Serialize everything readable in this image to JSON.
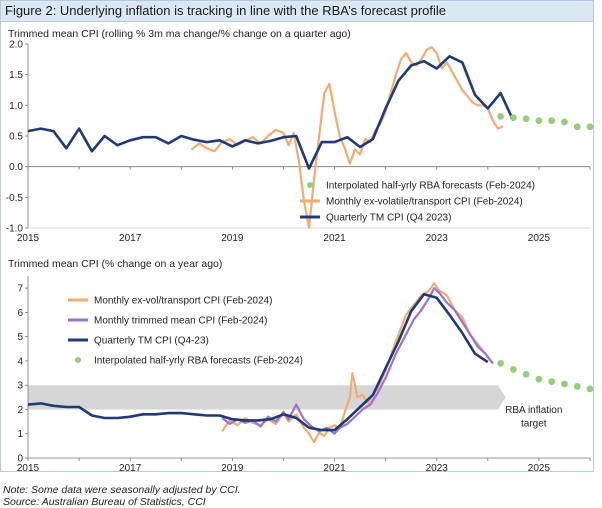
{
  "figure_title": "Figure 2: Underlying inflation is tracking in line with the RBA’s forecast profile",
  "note": "Note: Some data were seasonally adjusted by CCI.",
  "source": "Source: Australian Bureau of Statistics, CCI",
  "colors": {
    "quarterly": "#1f3a78",
    "monthly_exvol": "#f3ab74",
    "monthly_tm": "#9b72cf",
    "forecast": "#93cf79",
    "target_band": "#d6d6d6"
  },
  "chart_data": [
    {
      "type": "line",
      "title": "Trimmed mean CPI (rolling % 3m ma change/% change on a quarter ago)",
      "x_ticks": [
        "2015",
        "2017",
        "2019",
        "2021",
        "2023",
        "2025"
      ],
      "y_ticks": [
        "2.0",
        "1.5",
        "1.0",
        "0.5",
        "0.0",
        "-0.5",
        "-1.0"
      ],
      "xlim": [
        2015,
        2026
      ],
      "ylim": [
        -1.0,
        2.0
      ],
      "legend_position": "bottom-right",
      "series": [
        {
          "name": "Quarterly TM CPI (Q4 2023)",
          "style": "line",
          "color": "#1f3a78",
          "points": [
            [
              2015.0,
              0.58
            ],
            [
              2015.25,
              0.62
            ],
            [
              2015.5,
              0.58
            ],
            [
              2015.75,
              0.3
            ],
            [
              2016.0,
              0.62
            ],
            [
              2016.25,
              0.25
            ],
            [
              2016.5,
              0.5
            ],
            [
              2016.75,
              0.35
            ],
            [
              2017.0,
              0.43
            ],
            [
              2017.25,
              0.48
            ],
            [
              2017.5,
              0.48
            ],
            [
              2017.75,
              0.38
            ],
            [
              2018.0,
              0.5
            ],
            [
              2018.25,
              0.44
            ],
            [
              2018.5,
              0.4
            ],
            [
              2018.75,
              0.43
            ],
            [
              2019.0,
              0.33
            ],
            [
              2019.25,
              0.43
            ],
            [
              2019.5,
              0.38
            ],
            [
              2019.75,
              0.42
            ],
            [
              2020.0,
              0.48
            ],
            [
              2020.25,
              0.5
            ],
            [
              2020.5,
              -0.03
            ],
            [
              2020.75,
              0.4
            ],
            [
              2021.0,
              0.4
            ],
            [
              2021.25,
              0.48
            ],
            [
              2021.5,
              0.32
            ],
            [
              2021.75,
              0.45
            ],
            [
              2022.0,
              0.95
            ],
            [
              2022.25,
              1.4
            ],
            [
              2022.5,
              1.65
            ],
            [
              2022.75,
              1.72
            ],
            [
              2023.0,
              1.6
            ],
            [
              2023.25,
              1.8
            ],
            [
              2023.5,
              1.7
            ],
            [
              2023.75,
              1.17
            ],
            [
              2024.0,
              0.95
            ],
            [
              2024.25,
              1.2
            ],
            [
              2024.5,
              0.75
            ]
          ]
        },
        {
          "name": "Monthly ex-volatile/transport CPI (Feb-2024)",
          "style": "line",
          "color": "#f3ab74",
          "points": [
            [
              2018.2,
              0.28
            ],
            [
              2018.35,
              0.38
            ],
            [
              2018.5,
              0.3
            ],
            [
              2018.65,
              0.25
            ],
            [
              2018.8,
              0.4
            ],
            [
              2018.95,
              0.45
            ],
            [
              2019.1,
              0.35
            ],
            [
              2019.25,
              0.42
            ],
            [
              2019.4,
              0.48
            ],
            [
              2019.55,
              0.38
            ],
            [
              2019.7,
              0.5
            ],
            [
              2019.85,
              0.6
            ],
            [
              2020.0,
              0.55
            ],
            [
              2020.1,
              0.35
            ],
            [
              2020.2,
              0.55
            ],
            [
              2020.3,
              0.1
            ],
            [
              2020.4,
              -0.55
            ],
            [
              2020.5,
              -1.0
            ],
            [
              2020.6,
              -0.2
            ],
            [
              2020.7,
              0.5
            ],
            [
              2020.8,
              1.2
            ],
            [
              2020.9,
              1.35
            ],
            [
              2021.0,
              0.9
            ],
            [
              2021.1,
              0.5
            ],
            [
              2021.2,
              0.3
            ],
            [
              2021.3,
              0.05
            ],
            [
              2021.4,
              0.28
            ],
            [
              2021.5,
              0.2
            ],
            [
              2021.6,
              0.45
            ],
            [
              2021.7,
              0.4
            ],
            [
              2021.8,
              0.6
            ],
            [
              2021.9,
              0.7
            ],
            [
              2022.0,
              0.9
            ],
            [
              2022.1,
              1.2
            ],
            [
              2022.2,
              1.5
            ],
            [
              2022.3,
              1.75
            ],
            [
              2022.4,
              1.85
            ],
            [
              2022.5,
              1.7
            ],
            [
              2022.6,
              1.65
            ],
            [
              2022.7,
              1.75
            ],
            [
              2022.8,
              1.9
            ],
            [
              2022.9,
              1.95
            ],
            [
              2023.0,
              1.85
            ],
            [
              2023.1,
              1.6
            ],
            [
              2023.2,
              1.7
            ],
            [
              2023.3,
              1.55
            ],
            [
              2023.4,
              1.4
            ],
            [
              2023.5,
              1.25
            ],
            [
              2023.6,
              1.15
            ],
            [
              2023.7,
              1.05
            ],
            [
              2023.8,
              1.0
            ],
            [
              2023.9,
              1.0
            ],
            [
              2024.0,
              0.95
            ],
            [
              2024.1,
              0.75
            ],
            [
              2024.2,
              0.62
            ],
            [
              2024.3,
              0.66
            ]
          ]
        },
        {
          "name": "Interpolated half-yrly RBA forecasts (Feb-2024)",
          "style": "dots",
          "color": "#93cf79",
          "points": [
            [
              2024.25,
              0.82
            ],
            [
              2024.5,
              0.8
            ],
            [
              2024.75,
              0.78
            ],
            [
              2025.0,
              0.75
            ],
            [
              2025.25,
              0.75
            ],
            [
              2025.5,
              0.73
            ],
            [
              2025.75,
              0.65
            ],
            [
              2026.0,
              0.65
            ]
          ]
        }
      ]
    },
    {
      "type": "line",
      "title": "Trimmed mean CPI (% change on a year ago)",
      "x_ticks": [
        "2015",
        "2017",
        "2019",
        "2021",
        "2023",
        "2025"
      ],
      "y_ticks": [
        "7",
        "6",
        "5",
        "4",
        "3",
        "2",
        "1",
        "0"
      ],
      "xlim": [
        2015,
        2026
      ],
      "ylim": [
        0,
        7.5
      ],
      "legend_position": "top-left",
      "target_band": {
        "low": 2,
        "high": 3,
        "label": "RBA inflation target"
      },
      "series": [
        {
          "name": "Monthly ex-vol/transport CPI (Feb-2024)",
          "style": "line",
          "color": "#f3ab74",
          "points": [
            [
              2018.8,
              1.1
            ],
            [
              2018.95,
              1.55
            ],
            [
              2019.1,
              1.35
            ],
            [
              2019.25,
              1.65
            ],
            [
              2019.4,
              1.45
            ],
            [
              2019.55,
              1.35
            ],
            [
              2019.7,
              1.6
            ],
            [
              2019.85,
              1.4
            ],
            [
              2020.0,
              1.85
            ],
            [
              2020.1,
              1.5
            ],
            [
              2020.25,
              1.8
            ],
            [
              2020.4,
              1.25
            ],
            [
              2020.5,
              1.0
            ],
            [
              2020.6,
              0.65
            ],
            [
              2020.7,
              1.05
            ],
            [
              2020.8,
              0.9
            ],
            [
              2020.9,
              1.25
            ],
            [
              2021.0,
              1.35
            ],
            [
              2021.1,
              1.2
            ],
            [
              2021.2,
              1.9
            ],
            [
              2021.3,
              2.5
            ],
            [
              2021.35,
              3.5
            ],
            [
              2021.45,
              2.5
            ],
            [
              2021.55,
              2.6
            ],
            [
              2021.65,
              2.25
            ],
            [
              2021.75,
              2.6
            ],
            [
              2021.85,
              2.9
            ],
            [
              2022.0,
              3.6
            ],
            [
              2022.2,
              4.8
            ],
            [
              2022.4,
              5.9
            ],
            [
              2022.55,
              6.3
            ],
            [
              2022.7,
              6.7
            ],
            [
              2022.85,
              6.9
            ],
            [
              2022.95,
              7.2
            ],
            [
              2023.05,
              6.9
            ],
            [
              2023.2,
              6.7
            ],
            [
              2023.35,
              6.1
            ],
            [
              2023.5,
              5.8
            ],
            [
              2023.65,
              5.1
            ],
            [
              2023.8,
              4.7
            ],
            [
              2023.95,
              4.3
            ],
            [
              2024.1,
              3.9
            ]
          ]
        },
        {
          "name": "Monthly trimmed mean CPI (Feb-2024)",
          "style": "line",
          "color": "#9b72cf",
          "points": [
            [
              2018.8,
              1.65
            ],
            [
              2018.95,
              1.4
            ],
            [
              2019.1,
              1.6
            ],
            [
              2019.25,
              1.45
            ],
            [
              2019.4,
              1.55
            ],
            [
              2019.55,
              1.3
            ],
            [
              2019.7,
              1.7
            ],
            [
              2019.85,
              1.5
            ],
            [
              2020.0,
              1.9
            ],
            [
              2020.1,
              1.6
            ],
            [
              2020.25,
              2.2
            ],
            [
              2020.4,
              1.6
            ],
            [
              2020.55,
              1.3
            ],
            [
              2020.7,
              1.1
            ],
            [
              2020.85,
              1.25
            ],
            [
              2021.0,
              1.0
            ],
            [
              2021.1,
              1.25
            ],
            [
              2021.25,
              1.4
            ],
            [
              2021.4,
              1.7
            ],
            [
              2021.55,
              2.0
            ],
            [
              2021.7,
              2.2
            ],
            [
              2021.85,
              2.7
            ],
            [
              2022.0,
              3.3
            ],
            [
              2022.2,
              4.3
            ],
            [
              2022.4,
              5.1
            ],
            [
              2022.55,
              5.7
            ],
            [
              2022.7,
              6.1
            ],
            [
              2022.85,
              6.6
            ],
            [
              2022.95,
              7.0
            ],
            [
              2023.05,
              6.8
            ],
            [
              2023.2,
              6.4
            ],
            [
              2023.35,
              6.1
            ],
            [
              2023.5,
              5.6
            ],
            [
              2023.65,
              5.1
            ],
            [
              2023.8,
              4.6
            ],
            [
              2023.95,
              4.3
            ],
            [
              2024.1,
              3.9
            ]
          ]
        },
        {
          "name": "Quarterly TM CPI (Q4-23)",
          "style": "line",
          "color": "#1f3a78",
          "points": [
            [
              2015.0,
              2.2
            ],
            [
              2015.25,
              2.25
            ],
            [
              2015.5,
              2.15
            ],
            [
              2015.75,
              2.1
            ],
            [
              2016.0,
              2.1
            ],
            [
              2016.25,
              1.75
            ],
            [
              2016.5,
              1.65
            ],
            [
              2016.75,
              1.65
            ],
            [
              2017.0,
              1.7
            ],
            [
              2017.25,
              1.8
            ],
            [
              2017.5,
              1.8
            ],
            [
              2017.75,
              1.85
            ],
            [
              2018.0,
              1.85
            ],
            [
              2018.25,
              1.8
            ],
            [
              2018.5,
              1.75
            ],
            [
              2018.75,
              1.75
            ],
            [
              2019.0,
              1.6
            ],
            [
              2019.25,
              1.55
            ],
            [
              2019.5,
              1.55
            ],
            [
              2019.75,
              1.6
            ],
            [
              2020.0,
              1.8
            ],
            [
              2020.25,
              1.65
            ],
            [
              2020.5,
              1.25
            ],
            [
              2020.75,
              1.15
            ],
            [
              2021.0,
              1.15
            ],
            [
              2021.25,
              1.6
            ],
            [
              2021.5,
              2.1
            ],
            [
              2021.75,
              2.6
            ],
            [
              2022.0,
              3.7
            ],
            [
              2022.25,
              4.8
            ],
            [
              2022.5,
              6.05
            ],
            [
              2022.75,
              6.75
            ],
            [
              2023.0,
              6.6
            ],
            [
              2023.25,
              5.9
            ],
            [
              2023.5,
              5.15
            ],
            [
              2023.75,
              4.3
            ],
            [
              2024.0,
              3.95
            ]
          ]
        },
        {
          "name": "Interpolated half-yrly RBA forecasts (Feb-2024)",
          "style": "dots",
          "color": "#93cf79",
          "points": [
            [
              2024.25,
              3.9
            ],
            [
              2024.5,
              3.65
            ],
            [
              2024.75,
              3.45
            ],
            [
              2025.0,
              3.25
            ],
            [
              2025.25,
              3.15
            ],
            [
              2025.5,
              3.05
            ],
            [
              2025.75,
              2.95
            ],
            [
              2026.0,
              2.85
            ]
          ]
        }
      ]
    }
  ]
}
